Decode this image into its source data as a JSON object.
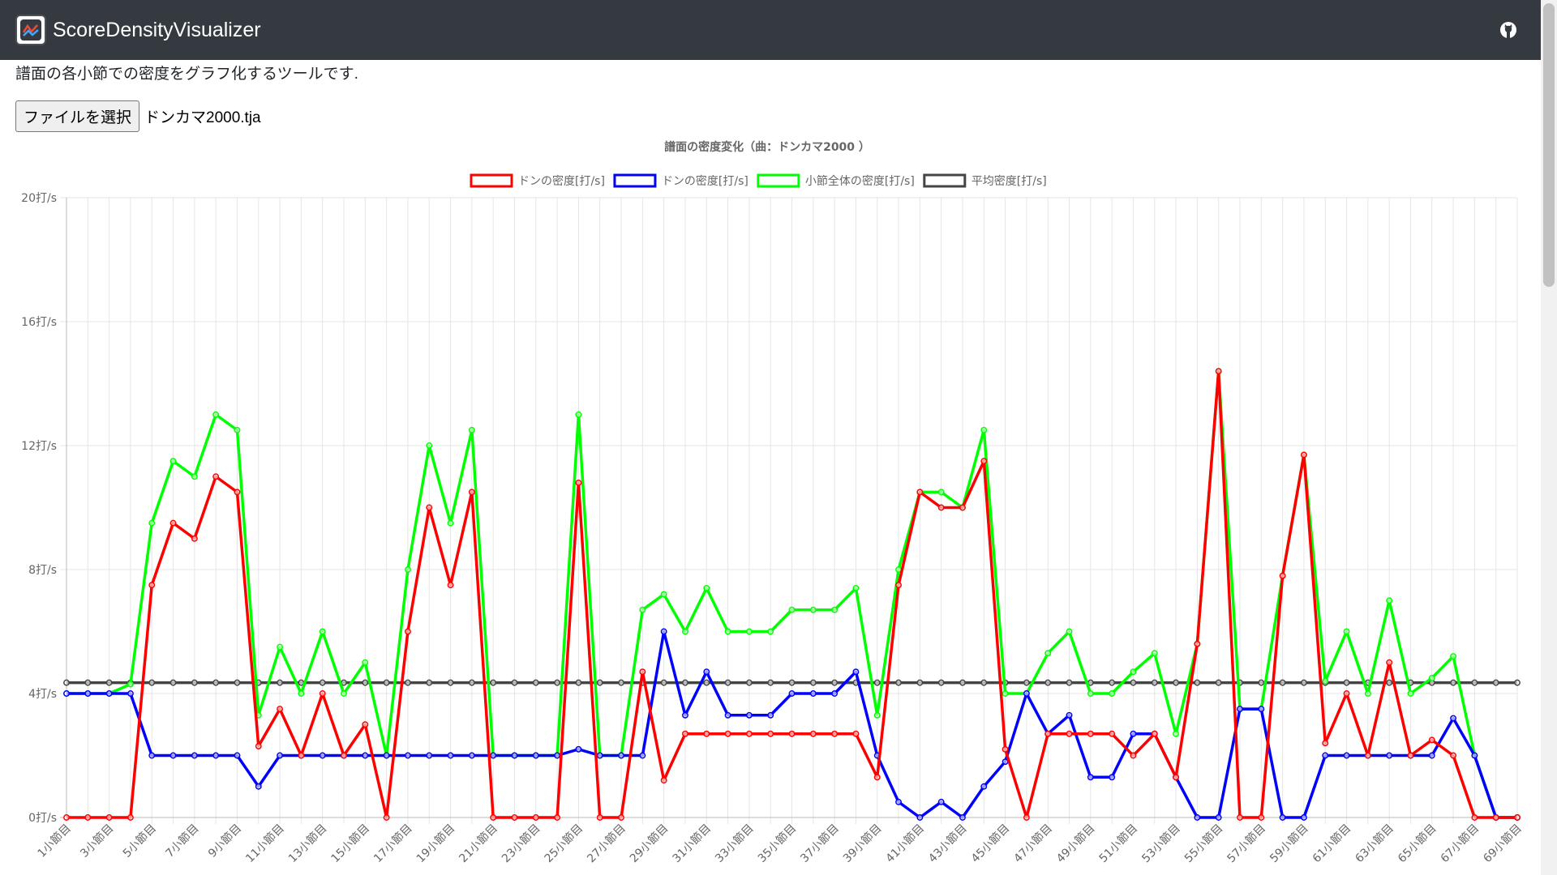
{
  "app": {
    "title": "ScoreDensityVisualizer",
    "logo_icon": "chart-logo-icon",
    "github_icon": "github-icon"
  },
  "page": {
    "description": "譜面の各小節での密度をグラフ化するツールです.",
    "file_button_label": "ファイルを選択",
    "file_name": "ドンカマ2000.tja"
  },
  "chart_data": {
    "type": "line",
    "title": "譜面の密度変化（曲：ドンカマ2000 ）",
    "legend_position": "top",
    "grid": true,
    "y_unit_suffix": "打/s",
    "ylim": [
      0,
      20
    ],
    "y_ticks": [
      0,
      4,
      8,
      12,
      16,
      20
    ],
    "categories": [
      "1小節目",
      "2小節目",
      "3小節目",
      "4小節目",
      "5小節目",
      "6小節目",
      "7小節目",
      "8小節目",
      "9小節目",
      "10小節目",
      "11小節目",
      "12小節目",
      "13小節目",
      "14小節目",
      "15小節目",
      "16小節目",
      "17小節目",
      "18小節目",
      "19小節目",
      "20小節目",
      "21小節目",
      "22小節目",
      "23小節目",
      "24小節目",
      "25小節目",
      "26小節目",
      "27小節目",
      "28小節目",
      "29小節目",
      "30小節目",
      "31小節目",
      "32小節目",
      "33小節目",
      "34小節目",
      "35小節目",
      "36小節目",
      "37小節目",
      "38小節目",
      "39小節目",
      "40小節目",
      "41小節目",
      "42小節目",
      "43小節目",
      "44小節目",
      "45小節目",
      "46小節目",
      "47小節目",
      "48小節目",
      "49小節目",
      "50小節目",
      "51小節目",
      "52小節目",
      "53小節目",
      "54小節目",
      "55小節目",
      "56小節目",
      "57小節目",
      "58小節目",
      "59小節目",
      "60小節目",
      "61小節目",
      "62小節目",
      "63小節目",
      "64小節目",
      "65小節目",
      "66小節目",
      "67小節目",
      "68小節目",
      "69小節目"
    ],
    "series": [
      {
        "name": "ドンの密度[打/s]",
        "color": "#ff0000",
        "values": [
          0,
          0,
          0,
          0,
          7.5,
          9.5,
          9,
          11,
          10.5,
          2.3,
          3.5,
          2,
          4,
          2,
          3,
          0,
          6,
          10,
          7.5,
          10.5,
          0,
          0,
          0,
          0,
          10.8,
          0,
          0,
          4.7,
          1.2,
          2.7,
          2.7,
          2.7,
          2.7,
          2.7,
          2.7,
          2.7,
          2.7,
          2.7,
          1.3,
          7.5,
          10.5,
          10,
          10,
          11.5,
          2.2,
          0,
          2.7,
          2.7,
          2.7,
          2.7,
          2,
          2.7,
          1.3,
          5.6,
          14.4,
          0,
          0,
          7.8,
          11.7,
          2.4,
          4,
          2,
          5,
          2,
          2.5,
          2,
          0,
          0,
          0
        ]
      },
      {
        "name": "ドンの密度[打/s]",
        "color": "#0000ff",
        "values": [
          4,
          4,
          4,
          4,
          2,
          2,
          2,
          2,
          2,
          1,
          2,
          2,
          2,
          2,
          2,
          2,
          2,
          2,
          2,
          2,
          2,
          2,
          2,
          2,
          2.2,
          2,
          2,
          2,
          6,
          3.3,
          4.7,
          3.3,
          3.3,
          3.3,
          4,
          4,
          4,
          4.7,
          2,
          0.5,
          0,
          0.5,
          0,
          1,
          1.8,
          4,
          2.7,
          3.3,
          1.3,
          1.3,
          2.7,
          2.7,
          1.3,
          0,
          0,
          3.5,
          3.5,
          0,
          0,
          2,
          2,
          2,
          2,
          2,
          2,
          3.2,
          2,
          0,
          0
        ]
      },
      {
        "name": "小節全体の密度[打/s]",
        "color": "#00ff00",
        "values": [
          4,
          4,
          4,
          4.3,
          9.5,
          11.5,
          11,
          13,
          12.5,
          3.3,
          5.5,
          4,
          6,
          4,
          5,
          2,
          8,
          12,
          9.5,
          12.5,
          2,
          2,
          2,
          2,
          13,
          2,
          2,
          6.7,
          7.2,
          6,
          7.4,
          6,
          6,
          6,
          6.7,
          6.7,
          6.7,
          7.4,
          3.3,
          8,
          10.5,
          10.5,
          10,
          12.5,
          4,
          4,
          5.3,
          6,
          4,
          4,
          4.7,
          5.3,
          2.7,
          5.6,
          14.4,
          3.5,
          3.5,
          7.8,
          11.7,
          4.4,
          6,
          4,
          7,
          4,
          4.5,
          5.2,
          2,
          0,
          0
        ]
      },
      {
        "name": "平均密度[打/s]",
        "color": "#444444",
        "values": [
          4.35,
          4.35,
          4.35,
          4.35,
          4.35,
          4.35,
          4.35,
          4.35,
          4.35,
          4.35,
          4.35,
          4.35,
          4.35,
          4.35,
          4.35,
          4.35,
          4.35,
          4.35,
          4.35,
          4.35,
          4.35,
          4.35,
          4.35,
          4.35,
          4.35,
          4.35,
          4.35,
          4.35,
          4.35,
          4.35,
          4.35,
          4.35,
          4.35,
          4.35,
          4.35,
          4.35,
          4.35,
          4.35,
          4.35,
          4.35,
          4.35,
          4.35,
          4.35,
          4.35,
          4.35,
          4.35,
          4.35,
          4.35,
          4.35,
          4.35,
          4.35,
          4.35,
          4.35,
          4.35,
          4.35,
          4.35,
          4.35,
          4.35,
          4.35,
          4.35,
          4.35,
          4.35,
          4.35,
          4.35,
          4.35,
          4.35,
          4.35,
          4.35,
          4.35
        ]
      }
    ]
  }
}
